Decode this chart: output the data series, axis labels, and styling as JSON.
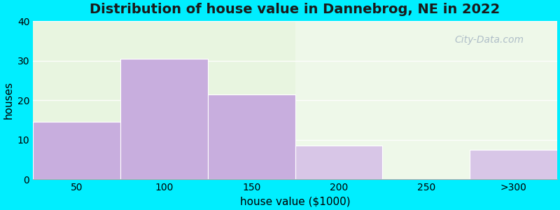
{
  "title": "Distribution of house value in Dannebrog, NE in 2022",
  "xlabel": "house value ($1000)",
  "ylabel": "houses",
  "categories": [
    "50",
    "100",
    "150",
    "200",
    "250",
    ">300"
  ],
  "values": [
    14.5,
    30.5,
    21.5,
    8.5,
    0,
    7.5
  ],
  "bar_color": "#c8aede",
  "bar_edge_color": "#ffffff",
  "ylim": [
    0,
    40
  ],
  "yticks": [
    0,
    10,
    20,
    30,
    40
  ],
  "outer_bg": "#00eeff",
  "plot_bg_color": "#e8f5e0",
  "title_fontsize": 14,
  "axis_label_fontsize": 11,
  "tick_fontsize": 10,
  "watermark_text": "City-Data.com",
  "grid_color": "#f5fff0",
  "grid_alpha": 1.0
}
